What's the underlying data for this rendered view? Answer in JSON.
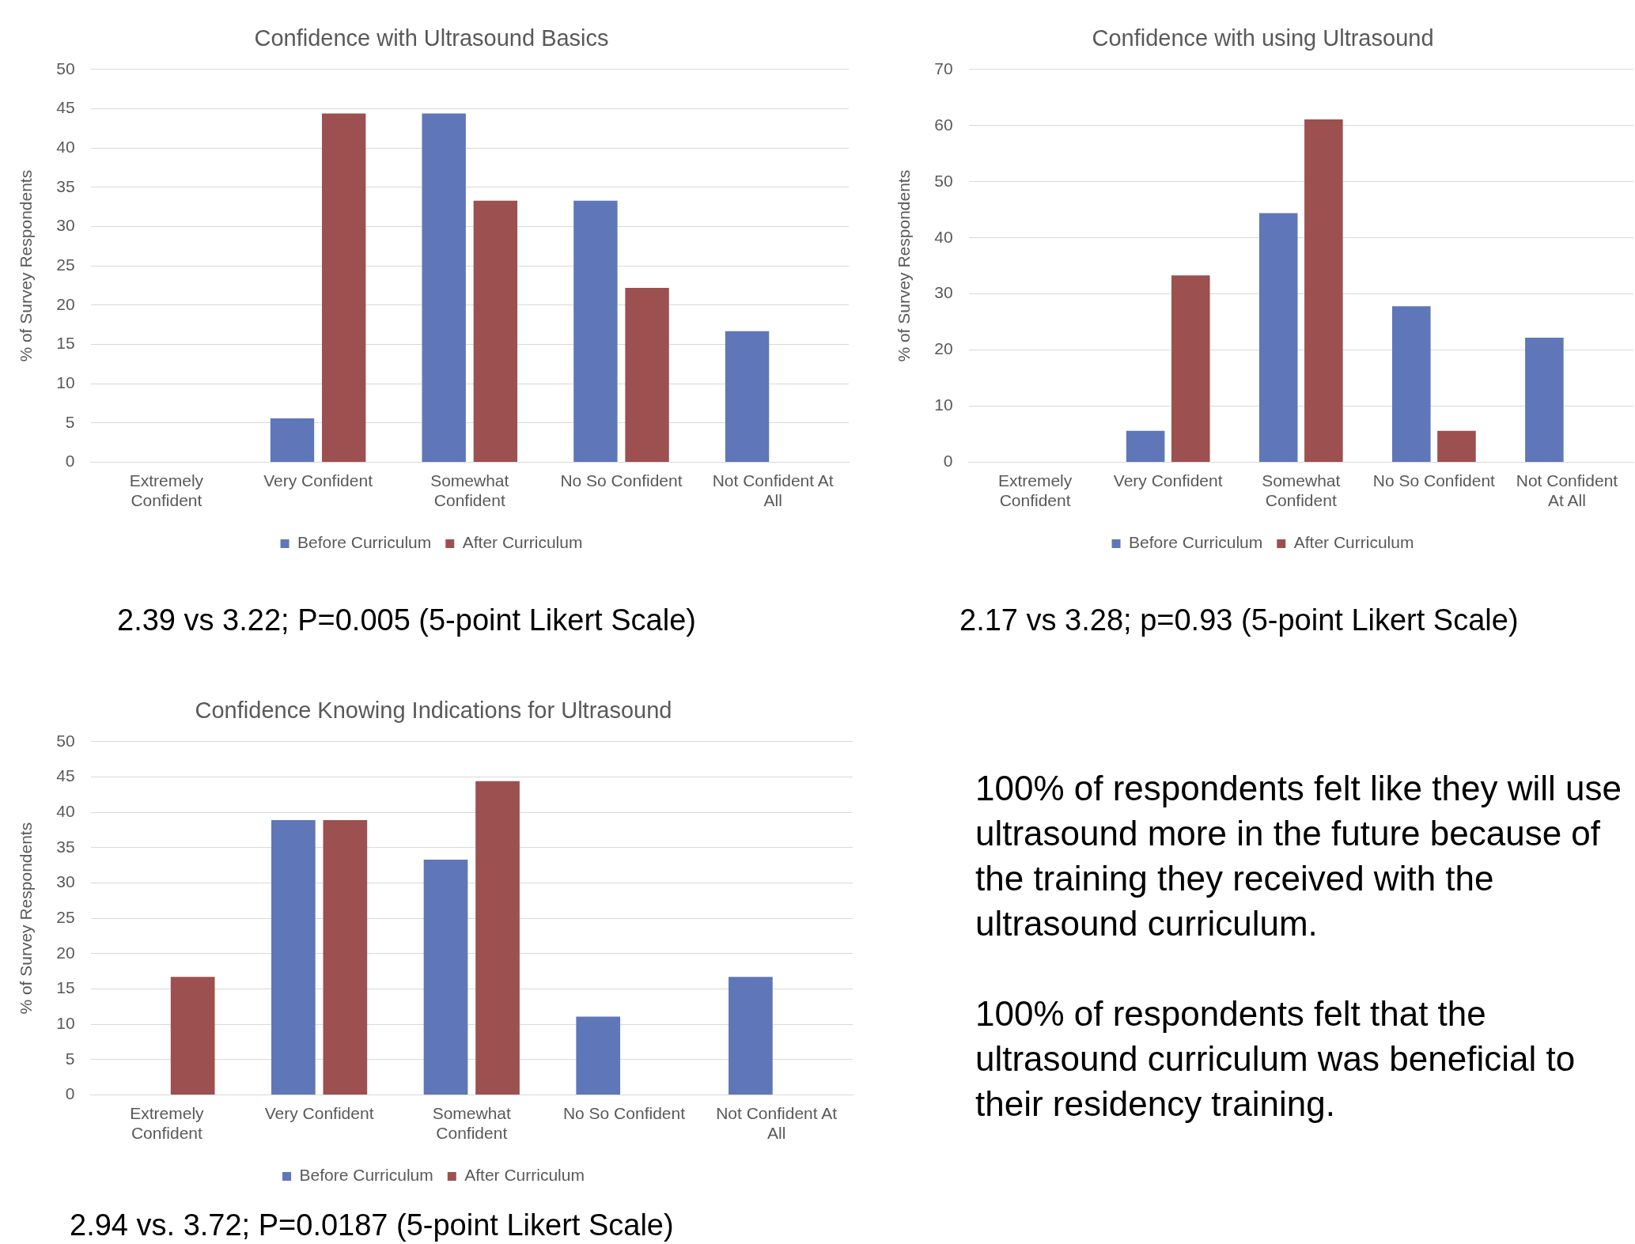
{
  "chart_data": [
    {
      "type": "bar",
      "title": "Confidence with Ultrasound Basics",
      "ylabel": "% of Survey Respondents",
      "categories": [
        "Extremely Confident",
        "Very Confident",
        "Somewhat Confident",
        "No So Confident",
        "Not Confident At All"
      ],
      "series": [
        {
          "name": "Before Curriculum",
          "color": "#5f77b8",
          "values": [
            0,
            5.6,
            44.4,
            33.3,
            16.7
          ]
        },
        {
          "name": "After Curriculum",
          "color": "#9c5050",
          "values": [
            0,
            44.4,
            33.3,
            22.2,
            0
          ]
        }
      ],
      "ylim": [
        0,
        50
      ],
      "yticks": [
        0,
        5,
        10,
        15,
        20,
        25,
        30,
        35,
        40,
        45,
        50
      ],
      "grid": "y",
      "legend": "bottom",
      "annotations": [
        "2.39 vs 3.22; P=0.005 (5-point Likert Scale)"
      ]
    },
    {
      "type": "bar",
      "title": "Confidence with using Ultrasound",
      "ylabel": "% of Survey Respondents",
      "categories": [
        "Extremely Confident",
        "Very Confident",
        "Somewhat Confident",
        "No So Confident",
        "Not Confident At All"
      ],
      "series": [
        {
          "name": "Before Curriculum",
          "color": "#5f77b8",
          "values": [
            0,
            5.6,
            44.4,
            27.8,
            22.2
          ]
        },
        {
          "name": "After Curriculum",
          "color": "#9c5050",
          "values": [
            0,
            33.3,
            61.1,
            5.6,
            0
          ]
        }
      ],
      "ylim": [
        0,
        70
      ],
      "yticks": [
        0,
        10,
        20,
        30,
        40,
        50,
        60,
        70
      ],
      "grid": "y",
      "legend": "bottom",
      "annotations": [
        "2.17 vs 3.28; p=0.93 (5-point Likert Scale)"
      ]
    },
    {
      "type": "bar",
      "title": "Confidence Knowing Indications for Ultrasound",
      "ylabel": "% of Survey Respondents",
      "categories": [
        "Extremely Confident",
        "Very Confident",
        "Somewhat Confident",
        "No So Confident",
        "Not Confident At All"
      ],
      "series": [
        {
          "name": "Before Curriculum",
          "color": "#5f77b8",
          "values": [
            0,
            38.9,
            33.3,
            11.1,
            16.7
          ]
        },
        {
          "name": "After Curriculum",
          "color": "#9c5050",
          "values": [
            16.7,
            38.9,
            44.4,
            0,
            0
          ]
        }
      ],
      "ylim": [
        0,
        50
      ],
      "yticks": [
        0,
        5,
        10,
        15,
        20,
        25,
        30,
        35,
        40,
        45,
        50
      ],
      "grid": "y",
      "legend": "bottom",
      "annotations": [
        "2.94 vs. 3.72; P=0.0187 (5-point Likert Scale)"
      ]
    },
    {
      "type": "other",
      "annotations": [
        "100% of respondents felt like they will use ultrasound more in the future because of the training they received with the ultrasound curriculum.",
        "100% of respondents felt that the ultrasound curriculum was beneficial to their residency training."
      ]
    }
  ]
}
